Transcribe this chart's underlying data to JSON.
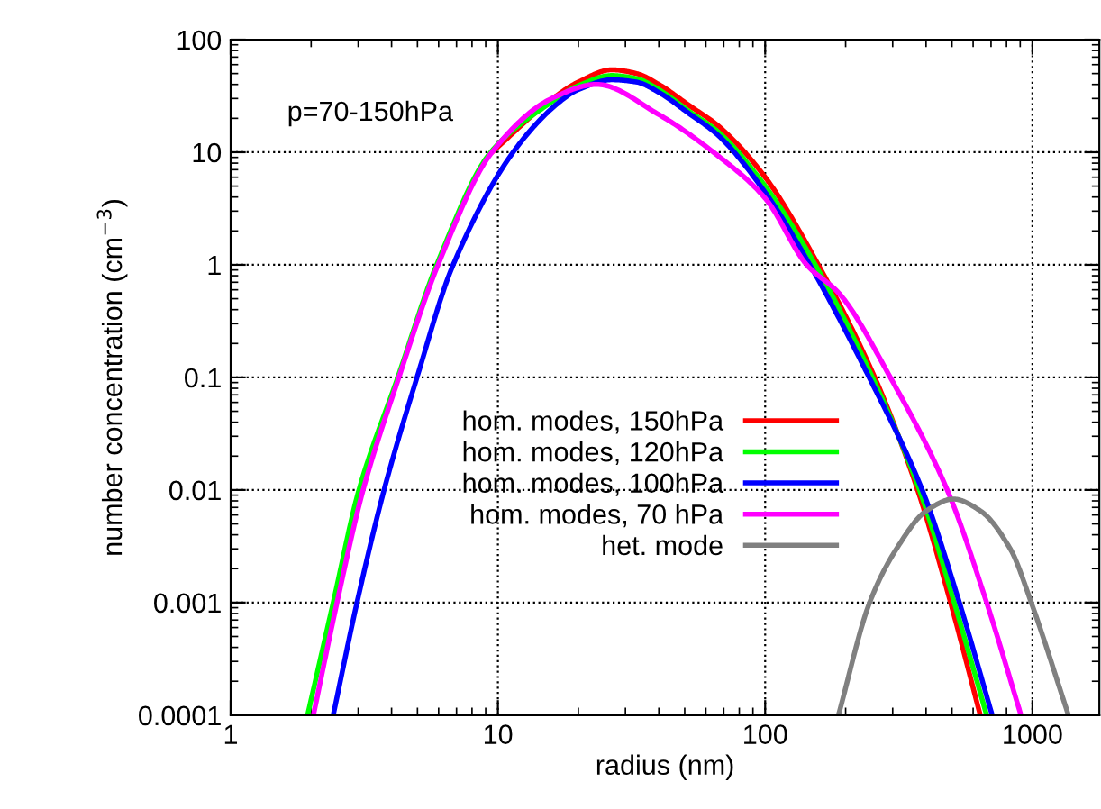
{
  "chart_data": {
    "type": "line",
    "xlabel": "radius (nm)",
    "ylabel": "number concentration (cm$^{−3}$)",
    "log": "xy",
    "annotations": [
      "p=70-150hPa"
    ],
    "xlim": [
      1,
      1780
    ],
    "xticks": [
      1,
      10,
      100,
      1000
    ],
    "ylim": [
      0.0001,
      100
    ],
    "yticks": [
      0.0001,
      0.001,
      0.01,
      0.1,
      1,
      10,
      100
    ],
    "grid": true,
    "legend": "right",
    "line_style": "solid",
    "series": [
      {
        "name": "hom. modes, 150hPa",
        "color": "#ff0000",
        "x": [
          9.5,
          15.9,
          20,
          26.7,
          33,
          40,
          52,
          67,
          100,
          158,
          257,
          372,
          494,
          638
        ],
        "values": [
          10,
          29.5,
          42,
          54,
          50,
          40,
          26,
          17,
          6,
          1,
          0.1,
          0.01,
          0.001,
          0.0001
        ]
      },
      {
        "name": "hom. modes, 120hPa",
        "color": "#00ff00",
        "x": [
          1.94,
          2.42,
          3.02,
          4.22,
          5.9,
          9.4,
          15.9,
          20,
          26.7,
          33,
          40,
          52,
          67,
          100,
          154,
          252,
          378,
          510,
          674
        ],
        "values": [
          0.0001,
          0.001,
          0.01,
          0.1,
          1,
          10,
          28,
          39,
          48,
          45,
          36,
          23,
          15,
          5,
          1,
          0.1,
          0.01,
          0.001,
          0.0001
        ]
      },
      {
        "name": "hom. modes, 100hPa",
        "color": "#0000ff",
        "x": [
          2.42,
          2.97,
          3.75,
          4.98,
          6.8,
          11.4,
          17,
          20,
          26.7,
          33,
          40,
          52,
          67,
          100,
          147,
          245,
          387,
          533,
          707
        ],
        "values": [
          0.0001,
          0.001,
          0.01,
          0.1,
          1,
          10,
          28,
          36,
          44,
          42,
          34,
          22,
          14,
          4.4,
          1,
          0.1,
          0.01,
          0.001,
          0.0001
        ]
      },
      {
        "name": "hom. modes, 70 hPa",
        "color": "#ff00ff",
        "x": [
          2.04,
          2.5,
          3.13,
          4.26,
          5.97,
          9.5,
          15.9,
          23.4,
          40,
          67,
          100,
          143,
          190,
          294,
          480,
          674,
          906
        ],
        "values": [
          0.0001,
          0.001,
          0.01,
          0.1,
          1,
          10,
          30,
          40,
          21.6,
          9.2,
          3.9,
          1,
          0.55,
          0.1,
          0.01,
          0.001,
          0.0001
        ]
      },
      {
        "name": "het. mode",
        "color": "#808080",
        "x": [
          188,
          246,
          310,
          400,
          506,
          640,
          826,
          990,
          1364
        ],
        "values": [
          0.0001,
          0.001,
          0.003,
          0.0065,
          0.0083,
          0.0065,
          0.003,
          0.001,
          0.0001
        ]
      }
    ]
  }
}
